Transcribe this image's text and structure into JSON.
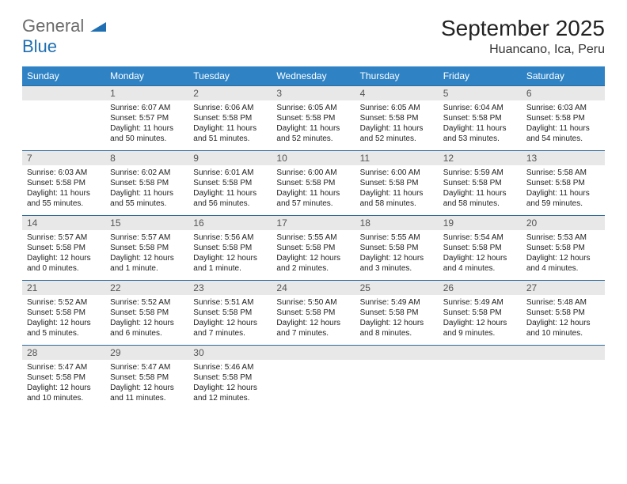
{
  "brand": {
    "part1": "General",
    "part2": "Blue"
  },
  "title": "September 2025",
  "location": "Huancano, Ica, Peru",
  "colors": {
    "header_bg": "#2f83c5",
    "header_text": "#ffffff",
    "daynum_bg": "#e8e8e8",
    "daynum_text": "#555555",
    "row_divider": "#2f6b9a",
    "body_text": "#222222",
    "brand_grey": "#6b6b6b",
    "brand_blue": "#1f6fb2"
  },
  "columns": [
    "Sunday",
    "Monday",
    "Tuesday",
    "Wednesday",
    "Thursday",
    "Friday",
    "Saturday"
  ],
  "weeks": [
    [
      null,
      {
        "n": "1",
        "sr": "Sunrise: 6:07 AM",
        "ss": "Sunset: 5:57 PM",
        "dl": "Daylight: 11 hours and 50 minutes."
      },
      {
        "n": "2",
        "sr": "Sunrise: 6:06 AM",
        "ss": "Sunset: 5:58 PM",
        "dl": "Daylight: 11 hours and 51 minutes."
      },
      {
        "n": "3",
        "sr": "Sunrise: 6:05 AM",
        "ss": "Sunset: 5:58 PM",
        "dl": "Daylight: 11 hours and 52 minutes."
      },
      {
        "n": "4",
        "sr": "Sunrise: 6:05 AM",
        "ss": "Sunset: 5:58 PM",
        "dl": "Daylight: 11 hours and 52 minutes."
      },
      {
        "n": "5",
        "sr": "Sunrise: 6:04 AM",
        "ss": "Sunset: 5:58 PM",
        "dl": "Daylight: 11 hours and 53 minutes."
      },
      {
        "n": "6",
        "sr": "Sunrise: 6:03 AM",
        "ss": "Sunset: 5:58 PM",
        "dl": "Daylight: 11 hours and 54 minutes."
      }
    ],
    [
      {
        "n": "7",
        "sr": "Sunrise: 6:03 AM",
        "ss": "Sunset: 5:58 PM",
        "dl": "Daylight: 11 hours and 55 minutes."
      },
      {
        "n": "8",
        "sr": "Sunrise: 6:02 AM",
        "ss": "Sunset: 5:58 PM",
        "dl": "Daylight: 11 hours and 55 minutes."
      },
      {
        "n": "9",
        "sr": "Sunrise: 6:01 AM",
        "ss": "Sunset: 5:58 PM",
        "dl": "Daylight: 11 hours and 56 minutes."
      },
      {
        "n": "10",
        "sr": "Sunrise: 6:00 AM",
        "ss": "Sunset: 5:58 PM",
        "dl": "Daylight: 11 hours and 57 minutes."
      },
      {
        "n": "11",
        "sr": "Sunrise: 6:00 AM",
        "ss": "Sunset: 5:58 PM",
        "dl": "Daylight: 11 hours and 58 minutes."
      },
      {
        "n": "12",
        "sr": "Sunrise: 5:59 AM",
        "ss": "Sunset: 5:58 PM",
        "dl": "Daylight: 11 hours and 58 minutes."
      },
      {
        "n": "13",
        "sr": "Sunrise: 5:58 AM",
        "ss": "Sunset: 5:58 PM",
        "dl": "Daylight: 11 hours and 59 minutes."
      }
    ],
    [
      {
        "n": "14",
        "sr": "Sunrise: 5:57 AM",
        "ss": "Sunset: 5:58 PM",
        "dl": "Daylight: 12 hours and 0 minutes."
      },
      {
        "n": "15",
        "sr": "Sunrise: 5:57 AM",
        "ss": "Sunset: 5:58 PM",
        "dl": "Daylight: 12 hours and 1 minute."
      },
      {
        "n": "16",
        "sr": "Sunrise: 5:56 AM",
        "ss": "Sunset: 5:58 PM",
        "dl": "Daylight: 12 hours and 1 minute."
      },
      {
        "n": "17",
        "sr": "Sunrise: 5:55 AM",
        "ss": "Sunset: 5:58 PM",
        "dl": "Daylight: 12 hours and 2 minutes."
      },
      {
        "n": "18",
        "sr": "Sunrise: 5:55 AM",
        "ss": "Sunset: 5:58 PM",
        "dl": "Daylight: 12 hours and 3 minutes."
      },
      {
        "n": "19",
        "sr": "Sunrise: 5:54 AM",
        "ss": "Sunset: 5:58 PM",
        "dl": "Daylight: 12 hours and 4 minutes."
      },
      {
        "n": "20",
        "sr": "Sunrise: 5:53 AM",
        "ss": "Sunset: 5:58 PM",
        "dl": "Daylight: 12 hours and 4 minutes."
      }
    ],
    [
      {
        "n": "21",
        "sr": "Sunrise: 5:52 AM",
        "ss": "Sunset: 5:58 PM",
        "dl": "Daylight: 12 hours and 5 minutes."
      },
      {
        "n": "22",
        "sr": "Sunrise: 5:52 AM",
        "ss": "Sunset: 5:58 PM",
        "dl": "Daylight: 12 hours and 6 minutes."
      },
      {
        "n": "23",
        "sr": "Sunrise: 5:51 AM",
        "ss": "Sunset: 5:58 PM",
        "dl": "Daylight: 12 hours and 7 minutes."
      },
      {
        "n": "24",
        "sr": "Sunrise: 5:50 AM",
        "ss": "Sunset: 5:58 PM",
        "dl": "Daylight: 12 hours and 7 minutes."
      },
      {
        "n": "25",
        "sr": "Sunrise: 5:49 AM",
        "ss": "Sunset: 5:58 PM",
        "dl": "Daylight: 12 hours and 8 minutes."
      },
      {
        "n": "26",
        "sr": "Sunrise: 5:49 AM",
        "ss": "Sunset: 5:58 PM",
        "dl": "Daylight: 12 hours and 9 minutes."
      },
      {
        "n": "27",
        "sr": "Sunrise: 5:48 AM",
        "ss": "Sunset: 5:58 PM",
        "dl": "Daylight: 12 hours and 10 minutes."
      }
    ],
    [
      {
        "n": "28",
        "sr": "Sunrise: 5:47 AM",
        "ss": "Sunset: 5:58 PM",
        "dl": "Daylight: 12 hours and 10 minutes."
      },
      {
        "n": "29",
        "sr": "Sunrise: 5:47 AM",
        "ss": "Sunset: 5:58 PM",
        "dl": "Daylight: 12 hours and 11 minutes."
      },
      {
        "n": "30",
        "sr": "Sunrise: 5:46 AM",
        "ss": "Sunset: 5:58 PM",
        "dl": "Daylight: 12 hours and 12 minutes."
      },
      null,
      null,
      null,
      null
    ]
  ]
}
